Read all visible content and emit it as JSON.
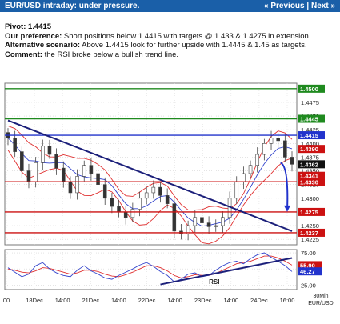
{
  "header": {
    "title": "EUR/USD intraday: under pressure.",
    "prev_label": "« Previous",
    "separator": "|",
    "next_label": "Next »"
  },
  "analysis": {
    "pivot_label": "Pivot:",
    "pivot_value": "1.4415",
    "preference_label": "Our preference:",
    "preference_text": "Short positions below 1.4415 with targets @ 1.433 & 1.4275 in extension.",
    "alternative_label": "Alternative scenario:",
    "alternative_text": "Above 1.4415 look for further upside with 1.4445 & 1.45 as targets.",
    "comment_label": "Comment:",
    "comment_text": "the RSI broke below a bullish trend line."
  },
  "colors": {
    "header_bg": "#1a5fa8",
    "resistance": "#1f8a1f",
    "pivot": "#2233cc",
    "support": "#cc1111",
    "price_tag": "#111111",
    "bands": "#e03030",
    "trendline": "#1b1f7a",
    "moving_average": "#3344cc",
    "candles": "#444444"
  },
  "chart_data": [
    {
      "type": "line",
      "subtype": "candlestick",
      "instrument": "EUR/USD",
      "x_tick_labels": [
        "00",
        "18Dec",
        "14:00",
        "21Dec",
        "14:00",
        "22Dec",
        "14:00",
        "23Dec",
        "14:00",
        "24Dec",
        "16:00"
      ],
      "x_axis_corner_label": "30Min\nEUR/USD",
      "y_ticks": [
        1.4225,
        1.425,
        1.4275,
        1.43,
        1.4325,
        1.435,
        1.4375,
        1.44,
        1.4425,
        1.445,
        1.4475,
        1.45
      ],
      "ylim": [
        1.4215,
        1.451
      ],
      "grid": true,
      "levels": [
        {
          "value": 1.45,
          "label": "1.4500",
          "kind": "resistance"
        },
        {
          "value": 1.4445,
          "label": "1.4445",
          "kind": "resistance"
        },
        {
          "value": 1.4415,
          "label": "1.4415",
          "kind": "pivot"
        },
        {
          "value": 1.433,
          "label": "1.4330",
          "kind": "support"
        },
        {
          "value": 1.4275,
          "label": "1.4275",
          "kind": "support"
        },
        {
          "value": 1.4237,
          "label": "1.4237",
          "kind": "support"
        }
      ],
      "price_tags": [
        {
          "value": 1.439,
          "label": "1.4390",
          "kind": "band"
        },
        {
          "value": 1.4362,
          "label": "1.4362",
          "kind": "last"
        },
        {
          "value": 1.4341,
          "label": "1.4341",
          "kind": "band"
        }
      ],
      "close_series": [
        1.441,
        1.4385,
        1.435,
        1.433,
        1.4365,
        1.4395,
        1.438,
        1.4355,
        1.433,
        1.431,
        1.434,
        1.436,
        1.4345,
        1.4325,
        1.43,
        1.4285,
        1.4275,
        1.4265,
        1.428,
        1.43,
        1.431,
        1.432,
        1.4305,
        1.429,
        1.424,
        1.4235,
        1.425,
        1.4265,
        1.4255,
        1.4248,
        1.425,
        1.4265,
        1.43,
        1.433,
        1.4345,
        1.436,
        1.438,
        1.44,
        1.441,
        1.4405,
        1.4375,
        1.4362
      ],
      "trendline": {
        "x_start": 0,
        "y_start": 1.4442,
        "x_end": 41,
        "y_end": 1.424
      },
      "projection": {
        "x_start": 40.5,
        "y_start": 1.4365,
        "x_end": 41,
        "y_end": 1.4278
      }
    },
    {
      "type": "line",
      "name": "RSI",
      "label": "RSI",
      "y_ticks": [
        25.0,
        50.0,
        75.0
      ],
      "ylim": [
        18,
        80
      ],
      "values": [
        52,
        45,
        38,
        42,
        55,
        60,
        50,
        44,
        40,
        38,
        48,
        55,
        47,
        42,
        36,
        34,
        40,
        45,
        50,
        56,
        60,
        54,
        46,
        40,
        30,
        34,
        42,
        44,
        38,
        40,
        48,
        55,
        60,
        62,
        58,
        66,
        72,
        75,
        68,
        62,
        55,
        46
      ],
      "signal_values": [
        50,
        48,
        45,
        44,
        47,
        52,
        51,
        48,
        45,
        42,
        44,
        48,
        48,
        46,
        42,
        39,
        38,
        41,
        45,
        50,
        55,
        55,
        52,
        47,
        40,
        36,
        38,
        41,
        40,
        40,
        43,
        48,
        53,
        58,
        60,
        62,
        66,
        70,
        70,
        67,
        62,
        56
      ],
      "value_tags": [
        {
          "value": 55.9,
          "label": "55.90"
        },
        {
          "value": 46.27,
          "label": "46.27"
        }
      ],
      "trendline": {
        "x_start": 22,
        "y_start": 26,
        "x_end": 41,
        "y_end": 67
      }
    }
  ]
}
